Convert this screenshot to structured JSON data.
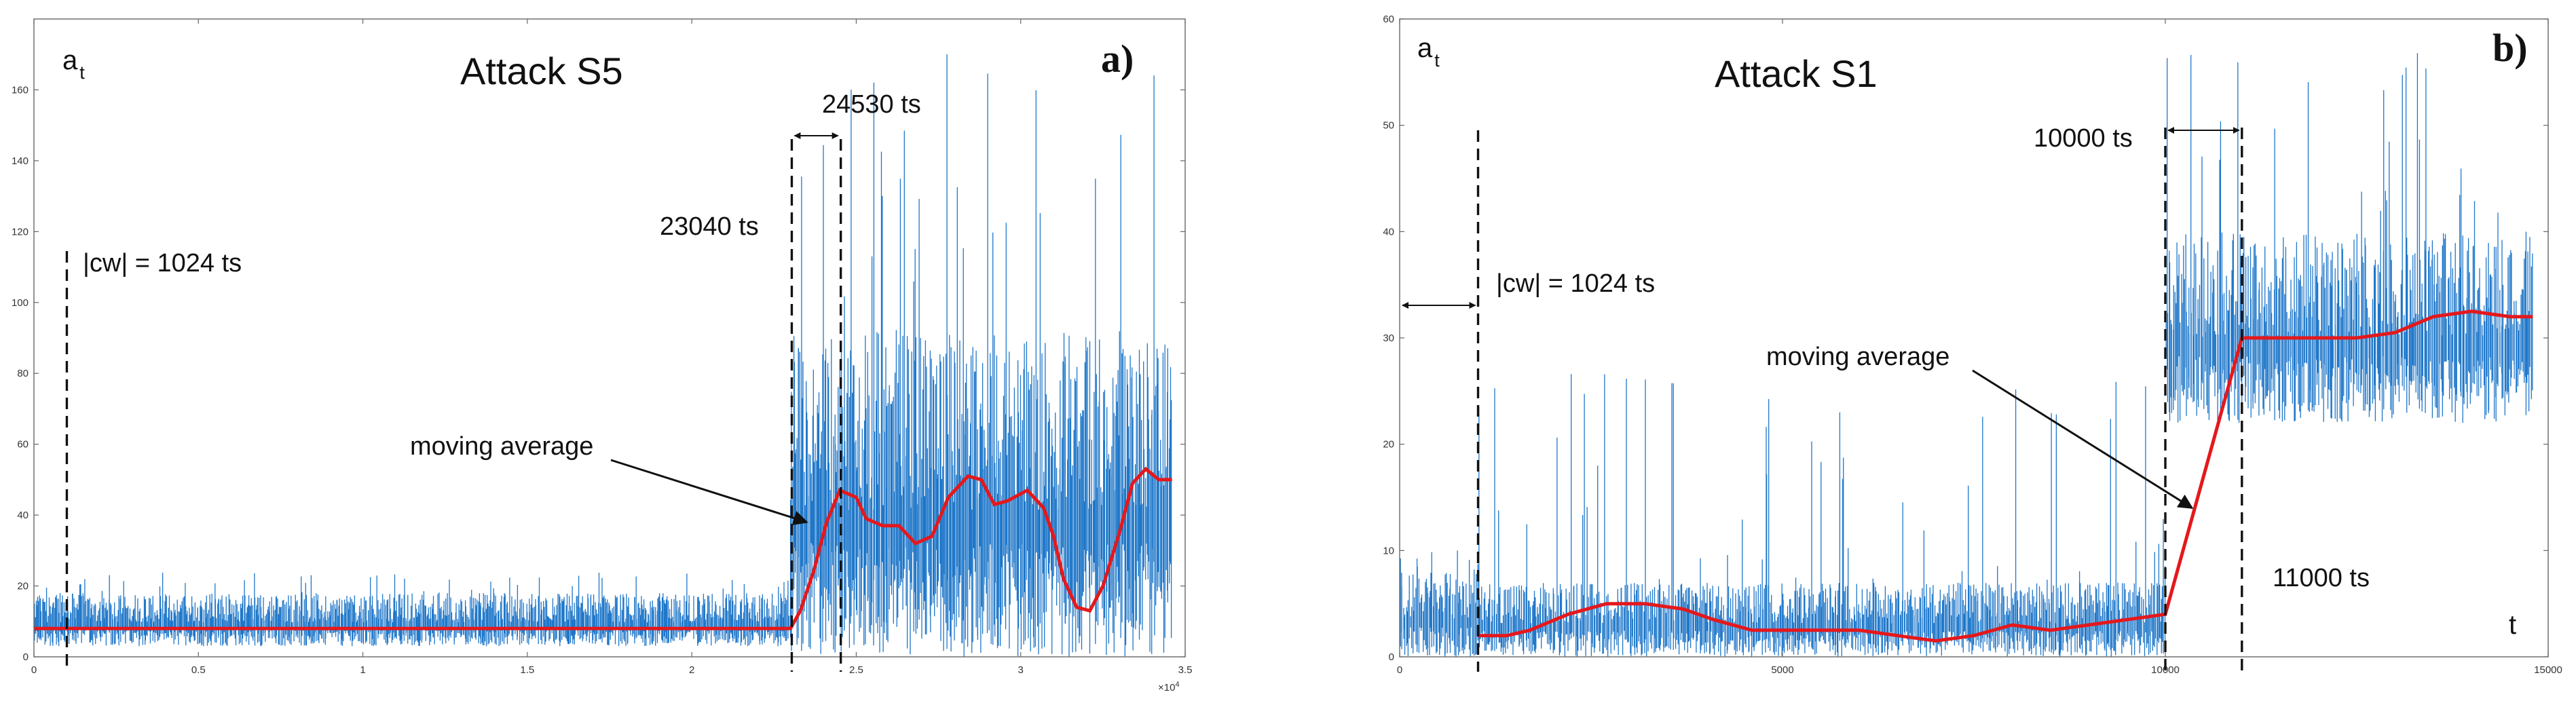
{
  "colors": {
    "signal": "#1f77c9",
    "moving_average": "#e4181c",
    "annotation": "#111111"
  },
  "chart_data": [
    {
      "panel": "a)",
      "type": "line",
      "title": "Attack  S5",
      "ylabel": {
        "symbol": "a",
        "subscript": "t"
      },
      "xlabel": "",
      "x_exponent_label": "×10",
      "x_exponent_power": "4",
      "xlim": [
        0,
        3.5
      ],
      "ylim": [
        0,
        180
      ],
      "xticks": [
        0,
        0.5,
        1,
        1.5,
        2,
        2.5,
        3,
        3.5
      ],
      "xtick_labels": [
        "0",
        "0.5",
        "1",
        "1.5",
        "2",
        "2.5",
        "3",
        "3.5"
      ],
      "yticks": [
        0,
        20,
        40,
        60,
        80,
        100,
        120,
        140,
        160
      ],
      "ytick_labels": [
        "0",
        "20",
        "40",
        "60",
        "80",
        "100",
        "120",
        "140",
        "160"
      ],
      "series": [
        {
          "name": "a_t",
          "segments": [
            {
              "x": [
                0,
                2.3
              ],
              "low": 3,
              "high": 18,
              "peak": 24
            },
            {
              "x": [
                2.3,
                3.46
              ],
              "low": 0,
              "high": 92,
              "peak": 172
            }
          ]
        },
        {
          "name": "moving average",
          "x": [
            0,
            0.1,
            2.3,
            2.33,
            2.37,
            2.41,
            2.45,
            2.5,
            2.53,
            2.58,
            2.63,
            2.68,
            2.73,
            2.78,
            2.84,
            2.88,
            2.92,
            2.96,
            3.02,
            3.07,
            3.1,
            3.13,
            3.17,
            3.21,
            3.25,
            3.3,
            3.34,
            3.38,
            3.42,
            3.46
          ],
          "y": [
            8,
            8,
            8,
            13,
            24,
            38,
            47,
            45,
            39,
            37,
            37,
            32,
            34,
            45,
            51,
            50,
            43,
            44,
            47,
            42,
            34,
            22,
            14,
            13,
            20,
            35,
            49,
            53,
            50,
            50
          ]
        }
      ],
      "vlines": [
        {
          "x": 0.1,
          "label": "|cw| = 1024 ts"
        },
        {
          "x": 2.304,
          "label": "23040 ts"
        },
        {
          "x": 2.453,
          "label": "24530 ts"
        }
      ],
      "annotations": [
        {
          "text": "moving average",
          "arrow_to": {
            "x": 2.35,
            "y": 38
          }
        }
      ]
    },
    {
      "panel": "b)",
      "type": "line",
      "title": "Attack  S1",
      "ylabel": {
        "symbol": "a",
        "subscript": "t"
      },
      "xlabel": "t",
      "xlim": [
        0,
        15000
      ],
      "ylim": [
        0,
        60
      ],
      "xticks": [
        0,
        5000,
        10000,
        15000
      ],
      "xtick_labels": [
        "0",
        "5000",
        "10000",
        "15000"
      ],
      "yticks": [
        0,
        10,
        20,
        30,
        40,
        50,
        60
      ],
      "ytick_labels": [
        "0",
        "10",
        "20",
        "30",
        "40",
        "50",
        "60"
      ],
      "series": [
        {
          "name": "a_t",
          "segments": [
            {
              "x": [
                0,
                1024
              ],
              "low": 0,
              "high": 8,
              "peak": 10
            },
            {
              "x": [
                1024,
                10000
              ],
              "low": 0,
              "high": 7,
              "peak": 28
            },
            {
              "x": [
                10000,
                14800
              ],
              "low": 22,
              "high": 40,
              "peak": 57
            }
          ]
        },
        {
          "name": "moving average",
          "x": [
            1024,
            1400,
            1700,
            2200,
            2700,
            3200,
            3700,
            4100,
            4600,
            5000,
            5500,
            6000,
            6500,
            7000,
            7500,
            8000,
            8500,
            9000,
            9500,
            10000,
            11000,
            11500,
            12000,
            12500,
            13000,
            13500,
            14000,
            14500,
            14800
          ],
          "y": [
            2,
            2,
            2.5,
            4,
            5,
            5,
            4.5,
            3.5,
            2.5,
            2.5,
            2.5,
            2.5,
            2,
            1.5,
            2,
            3,
            2.5,
            3,
            3.5,
            4,
            30,
            30,
            30,
            30,
            30.5,
            32,
            32.5,
            32,
            32
          ]
        }
      ],
      "vlines": [
        {
          "x": 1024,
          "label": "|cw| = 1024 ts"
        },
        {
          "x": 10000,
          "label": "10000 ts"
        },
        {
          "x": 11000,
          "label": "11000 ts"
        }
      ],
      "annotations": [
        {
          "text": "moving average",
          "arrow_to": {
            "x": 10350,
            "y": 14
          }
        }
      ]
    }
  ]
}
